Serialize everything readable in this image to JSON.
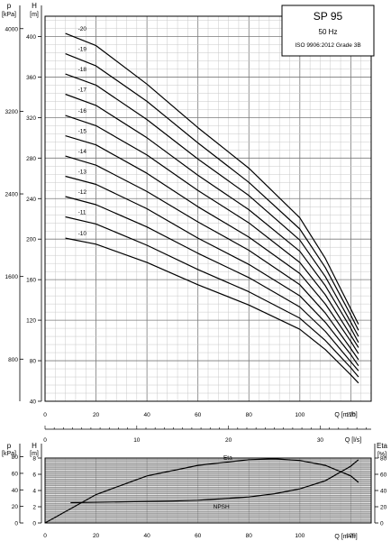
{
  "chart_data": [
    {
      "type": "line",
      "title": "SP 95",
      "subtitle_1": "50 Hz",
      "subtitle_2": "ISO 9906:2012 Grade 3B",
      "xlabel": "Q [m³/h]",
      "xlabel_ls": "Q [l/s]",
      "ylabel_top": "H",
      "ylabel_unit": "[m]",
      "ylabel2_top": "p",
      "ylabel2_unit": "[kPa]",
      "xlim": [
        0,
        128
      ],
      "ylim": [
        40,
        420
      ],
      "x_ticks": [
        0,
        20,
        40,
        60,
        80,
        100,
        120
      ],
      "y_ticks": [
        40,
        80,
        120,
        160,
        200,
        240,
        280,
        320,
        360,
        400
      ],
      "kpa_ticks": [
        800,
        1600,
        2400,
        3200,
        4000
      ],
      "ls_ticks": [
        0,
        10,
        20,
        30
      ],
      "grid": true,
      "series": [
        {
          "name": "-20",
          "x": [
            8,
            20,
            40,
            60,
            80,
            100,
            110,
            120,
            123
          ],
          "y": [
            403,
            391,
            353,
            310,
            270,
            221,
            181,
            131,
            116
          ]
        },
        {
          "name": "-19",
          "x": [
            8,
            20,
            40,
            60,
            80,
            100,
            110,
            120,
            123
          ],
          "y": [
            383,
            371,
            336,
            295,
            256,
            210,
            172,
            125,
            110
          ]
        },
        {
          "name": "-18",
          "x": [
            8,
            20,
            40,
            60,
            80,
            100,
            110,
            120,
            123
          ],
          "y": [
            363,
            352,
            318,
            279,
            243,
            199,
            163,
            118,
            104
          ]
        },
        {
          "name": "-17",
          "x": [
            8,
            20,
            40,
            60,
            80,
            100,
            110,
            120,
            123
          ],
          "y": [
            343,
            332,
            300,
            263,
            229,
            188,
            154,
            112,
            98
          ]
        },
        {
          "name": "-16",
          "x": [
            8,
            20,
            40,
            60,
            80,
            100,
            110,
            120,
            123
          ],
          "y": [
            322,
            312,
            283,
            248,
            216,
            177,
            145,
            105,
            93
          ]
        },
        {
          "name": "-15",
          "x": [
            8,
            20,
            40,
            60,
            80,
            100,
            110,
            120,
            123
          ],
          "y": [
            302,
            293,
            265,
            232,
            202,
            166,
            136,
            99,
            87
          ]
        },
        {
          "name": "-14",
          "x": [
            8,
            20,
            40,
            60,
            80,
            100,
            110,
            120,
            123
          ],
          "y": [
            282,
            273,
            247,
            217,
            189,
            155,
            127,
            92,
            81
          ]
        },
        {
          "name": "-13",
          "x": [
            8,
            20,
            40,
            60,
            80,
            100,
            110,
            120,
            123
          ],
          "y": [
            262,
            254,
            230,
            201,
            175,
            144,
            118,
            86,
            75
          ]
        },
        {
          "name": "-12",
          "x": [
            8,
            20,
            40,
            60,
            80,
            100,
            110,
            120,
            123
          ],
          "y": [
            242,
            234,
            212,
            186,
            162,
            133,
            109,
            79,
            70
          ]
        },
        {
          "name": "-11",
          "x": [
            8,
            20,
            40,
            60,
            80,
            100,
            110,
            120,
            123
          ],
          "y": [
            222,
            215,
            194,
            170,
            148,
            122,
            100,
            73,
            64
          ]
        },
        {
          "name": "-10",
          "x": [
            8,
            20,
            40,
            60,
            80,
            100,
            110,
            120,
            123
          ],
          "y": [
            201,
            195,
            177,
            155,
            135,
            111,
            91,
            66,
            58
          ]
        }
      ]
    },
    {
      "type": "line",
      "xlabel": "Q [m³/h]",
      "ylabel_top": "H",
      "ylabel_unit": "[m]",
      "ylabel2_top": "p",
      "ylabel2_unit": "[kPa]",
      "ylabel3_top": "Eta",
      "ylabel3_unit": "[%]",
      "xlim": [
        0,
        128
      ],
      "ylim": [
        0,
        80
      ],
      "x_ticks": [
        0,
        20,
        40,
        60,
        80,
        100,
        120
      ],
      "y_ticks": [
        0,
        2,
        4,
        6,
        8
      ],
      "kpa_ticks": [
        0,
        20,
        40,
        60,
        80
      ],
      "eta_ticks": [
        0,
        20,
        40,
        60,
        80
      ],
      "grid": true,
      "series": [
        {
          "name": "Eta",
          "unit": "%",
          "x": [
            0,
            20,
            40,
            60,
            80,
            90,
            100,
            110,
            120,
            123
          ],
          "y": [
            0,
            35,
            58,
            71,
            78,
            79,
            77,
            71,
            58,
            50
          ]
        },
        {
          "name": "NPSH",
          "unit": "m",
          "x": [
            10,
            30,
            50,
            60,
            70,
            80,
            90,
            100,
            110,
            120,
            123
          ],
          "y": [
            2.5,
            2.6,
            2.7,
            2.8,
            3.0,
            3.2,
            3.6,
            4.2,
            5.2,
            7.0,
            7.8
          ]
        }
      ]
    }
  ]
}
